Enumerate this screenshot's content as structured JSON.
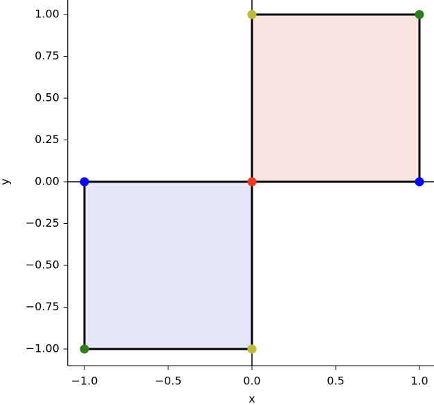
{
  "chart_data": {
    "type": "scatter",
    "xlabel": "x",
    "ylabel": "y",
    "xlim": [
      -1.1,
      1.1
    ],
    "ylim": [
      -1.1,
      1.1
    ],
    "xticks": [
      {
        "value": -1.0,
        "label": "−1.0"
      },
      {
        "value": -0.5,
        "label": "−0.5"
      },
      {
        "value": 0.0,
        "label": "0.0"
      },
      {
        "value": 0.5,
        "label": "0.5"
      },
      {
        "value": 1.0,
        "label": "1.0"
      }
    ],
    "yticks": [
      {
        "value": -1.0,
        "label": "−1.00"
      },
      {
        "value": -0.75,
        "label": "−0.75"
      },
      {
        "value": -0.5,
        "label": "−0.50"
      },
      {
        "value": -0.25,
        "label": "−0.25"
      },
      {
        "value": 0.0,
        "label": "0.00"
      },
      {
        "value": 0.25,
        "label": "0.25"
      },
      {
        "value": 0.5,
        "label": "0.50"
      },
      {
        "value": 0.75,
        "label": "0.75"
      },
      {
        "value": 1.0,
        "label": "1.00"
      }
    ],
    "hlines": [
      0
    ],
    "vlines": [
      0
    ],
    "polygons": [
      {
        "x": [
          -1,
          0,
          0,
          -1
        ],
        "y": [
          0,
          0,
          -1,
          -1
        ],
        "fill": "#e5e6fa",
        "edge": "#000000"
      },
      {
        "x": [
          0,
          1,
          1,
          0
        ],
        "y": [
          0,
          0,
          1,
          1
        ],
        "fill": "#fbe5e3",
        "edge": "#000000"
      }
    ],
    "series": [
      {
        "color": "#0000ff",
        "x": [
          -1,
          1
        ],
        "y": [
          0,
          0
        ]
      },
      {
        "color": "#2f7f1f",
        "x": [
          -1,
          1
        ],
        "y": [
          -1,
          1
        ]
      },
      {
        "color": "#bcbc3a",
        "x": [
          0,
          0
        ],
        "y": [
          1,
          -1
        ]
      },
      {
        "color": "#f03a26",
        "x": [
          0
        ],
        "y": [
          0
        ]
      }
    ]
  }
}
